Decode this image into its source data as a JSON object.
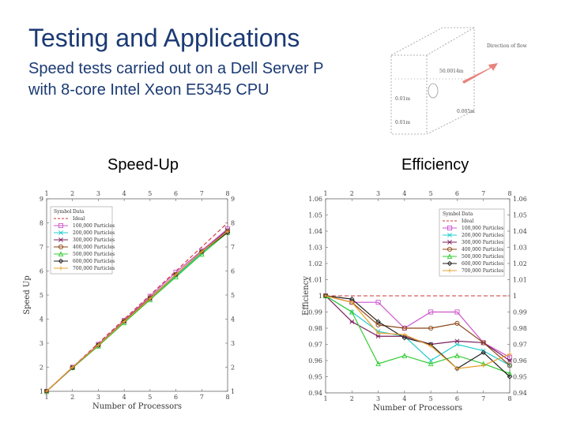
{
  "slide": {
    "title": "Testing and Applications",
    "subtitle_line1": "Speed tests carried out on a Dell Server P",
    "subtitle_line2": "with 8-core Intel Xeon E5345 CPU",
    "left_label": "Speed-Up",
    "right_label": "Efficiency"
  },
  "diagram": {
    "labels": [
      "Direction of flow",
      "50.0014m",
      "0.01m",
      "0.005m",
      "0.01m"
    ],
    "arrow_color": "#e8827e"
  },
  "legend": {
    "header_symbol": "Symbol",
    "header_data": "Data"
  },
  "chart_data": [
    {
      "type": "line",
      "xlabel": "Number of Processors",
      "ylabel": "Speed Up",
      "x": [
        1,
        2,
        3,
        4,
        5,
        6,
        7,
        8
      ],
      "xlim": [
        1,
        8
      ],
      "ylim": [
        1,
        9
      ],
      "yticks": [
        1,
        2,
        3,
        4,
        5,
        6,
        7,
        8,
        9
      ],
      "series": [
        {
          "name": "Ideal",
          "color": "#cc3333",
          "dashed": true,
          "marker": "none",
          "values": [
            1,
            2,
            3,
            4,
            5,
            6,
            7,
            8
          ]
        },
        {
          "name": "100,000 Particles",
          "color": "#cc55cc",
          "marker": "square",
          "values": [
            1,
            2,
            2.95,
            3.95,
            4.95,
            5.95,
            6.85,
            7.75
          ]
        },
        {
          "name": "200,000 Particles",
          "color": "#22cccc",
          "marker": "x",
          "values": [
            1,
            1.98,
            2.9,
            3.9,
            4.85,
            5.8,
            6.75,
            7.65
          ]
        },
        {
          "name": "300,000 Particles",
          "color": "#7a1f5c",
          "marker": "star",
          "values": [
            1,
            1.98,
            2.92,
            3.9,
            4.85,
            5.85,
            6.8,
            7.7
          ]
        },
        {
          "name": "400,000 Particles",
          "color": "#8b4513",
          "marker": "circle",
          "values": [
            1,
            1.99,
            2.92,
            3.92,
            4.88,
            5.85,
            6.8,
            7.65
          ]
        },
        {
          "name": "500,000 Particles",
          "color": "#33cc33",
          "marker": "triangle",
          "values": [
            1,
            1.98,
            2.88,
            3.85,
            4.8,
            5.75,
            6.7,
            7.6
          ]
        },
        {
          "name": "600,000 Particles",
          "color": "#222222",
          "marker": "diamond",
          "values": [
            1,
            1.98,
            2.92,
            3.9,
            4.85,
            5.85,
            6.8,
            7.6
          ]
        },
        {
          "name": "700,000 Particles",
          "color": "#e8a030",
          "marker": "plus",
          "values": [
            1,
            2,
            2.92,
            3.9,
            4.85,
            5.85,
            6.8,
            7.65
          ]
        }
      ]
    },
    {
      "type": "line",
      "xlabel": "Number of Processors",
      "ylabel": "Efficiency",
      "x": [
        1,
        2,
        3,
        4,
        5,
        6,
        7,
        8
      ],
      "xlim": [
        1,
        8
      ],
      "ylim": [
        0.94,
        1.06
      ],
      "yticks": [
        0.94,
        0.95,
        0.96,
        0.97,
        0.98,
        0.99,
        1,
        1.01,
        1.02,
        1.03,
        1.04,
        1.05,
        1.06
      ],
      "series": [
        {
          "name": "Ideal",
          "color": "#cc3333",
          "dashed": true,
          "marker": "none",
          "values": [
            1,
            1,
            1,
            1,
            1,
            1,
            1,
            1
          ]
        },
        {
          "name": "100,000 Particles",
          "color": "#cc55cc",
          "marker": "square",
          "values": [
            1,
            0.996,
            0.996,
            0.98,
            0.99,
            0.99,
            0.971,
            0.962
          ]
        },
        {
          "name": "200,000 Particles",
          "color": "#22cccc",
          "marker": "x",
          "values": [
            1,
            0.99,
            0.978,
            0.975,
            0.96,
            0.97,
            0.966,
            0.957
          ]
        },
        {
          "name": "300,000 Particles",
          "color": "#7a1f5c",
          "marker": "star",
          "values": [
            1,
            0.984,
            0.975,
            0.975,
            0.97,
            0.972,
            0.971,
            0.96
          ]
        },
        {
          "name": "400,000 Particles",
          "color": "#8b4513",
          "marker": "circle",
          "values": [
            1,
            0.996,
            0.982,
            0.98,
            0.98,
            0.983,
            0.971,
            0.957
          ]
        },
        {
          "name": "500,000 Particles",
          "color": "#33cc33",
          "marker": "triangle",
          "values": [
            1,
            0.99,
            0.958,
            0.963,
            0.958,
            0.963,
            0.958,
            0.952
          ]
        },
        {
          "name": "600,000 Particles",
          "color": "#222222",
          "marker": "diamond",
          "values": [
            1,
            0.998,
            0.984,
            0.974,
            0.97,
            0.955,
            0.965,
            0.95
          ]
        },
        {
          "name": "700,000 Particles",
          "color": "#e8a030",
          "marker": "plus",
          "values": [
            1,
            0.996,
            0.977,
            0.976,
            0.969,
            0.955,
            0.957,
            0.964
          ]
        }
      ]
    }
  ]
}
